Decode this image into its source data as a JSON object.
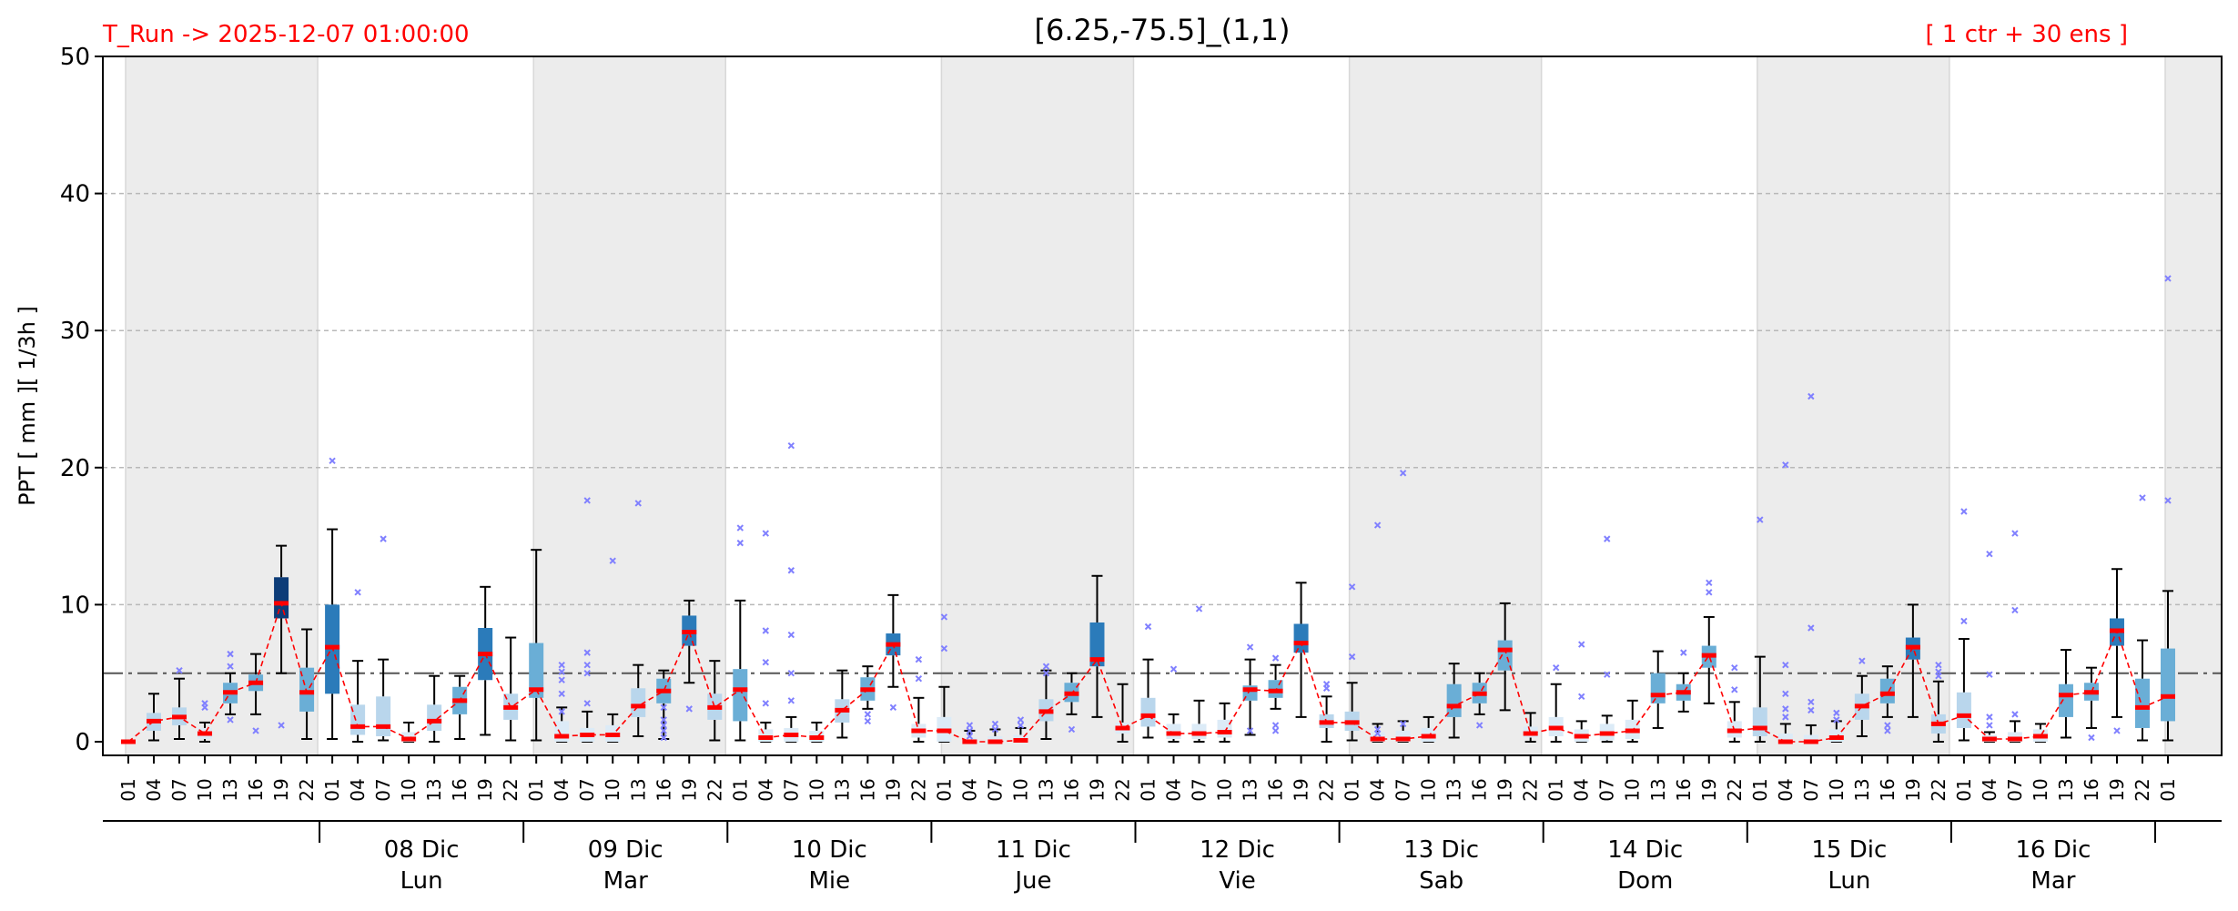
{
  "header": {
    "run_label": "T_Run -> 2025-12-07  01:00:00",
    "title": "[6.25,-75.5]_(1,1)",
    "ensemble_label": "[ 1 ctr + 30 ens ]",
    "run_color": "#ff0000",
    "ensemble_color": "#ff0000"
  },
  "chart_data": {
    "type": "box",
    "title": "[6.25,-75.5]_(1,1)",
    "ylabel": "PPT  [ mm ][ 1/3h ]",
    "ylim": [
      0,
      50
    ],
    "yticks": [
      0,
      10,
      20,
      30,
      40,
      50
    ],
    "grid": "horizontal dashed",
    "threshold": 5,
    "hours": [
      "01",
      "04",
      "07",
      "10",
      "13",
      "16",
      "19",
      "22",
      "01",
      "04",
      "07",
      "10",
      "13",
      "16",
      "19",
      "22",
      "01",
      "04",
      "07",
      "10",
      "13",
      "16",
      "19",
      "22",
      "01",
      "04",
      "07",
      "10",
      "13",
      "16",
      "19",
      "22",
      "01",
      "04",
      "07",
      "10",
      "13",
      "16",
      "19",
      "22",
      "01",
      "04",
      "07",
      "10",
      "13",
      "16",
      "19",
      "22",
      "01",
      "04",
      "07",
      "10",
      "13",
      "16",
      "19",
      "22",
      "01",
      "04",
      "07",
      "10",
      "13",
      "16",
      "19",
      "22",
      "01",
      "04",
      "07",
      "10",
      "13",
      "16",
      "19",
      "22",
      "01",
      "04",
      "07",
      "10",
      "13",
      "16",
      "19",
      "22",
      "01"
    ],
    "days": [
      {
        "date": "08 Dic",
        "weekday": "Lun"
      },
      {
        "date": "09 Dic",
        "weekday": "Mar"
      },
      {
        "date": "10 Dic",
        "weekday": "Mie"
      },
      {
        "date": "11 Dic",
        "weekday": "Jue"
      },
      {
        "date": "12 Dic",
        "weekday": "Vie"
      },
      {
        "date": "13 Dic",
        "weekday": "Sab"
      },
      {
        "date": "14 Dic",
        "weekday": "Dom"
      },
      {
        "date": "15 Dic",
        "weekday": "Lun"
      },
      {
        "date": "16 Dic",
        "weekday": "Mar"
      }
    ],
    "colors": {
      "night_band": "#ececec",
      "median": "#ff0000",
      "control_line": "#ff0000",
      "whisker": "#000000",
      "outlier": "#8080ff",
      "threshold_line": "#555555",
      "box_levels": [
        "#dcebf7",
        "#b9d6ec",
        "#6aaed6",
        "#2b7bba",
        "#0c3c78"
      ]
    },
    "series": [
      {
        "name": "control",
        "values": [
          0,
          1.5,
          1.8,
          0.6,
          3.6,
          4.3,
          10.1,
          3.6,
          6.9,
          1.1,
          1.1,
          0.2,
          1.5,
          3.0,
          6.4,
          2.5,
          3.8,
          0.4,
          0.5,
          0.5,
          2.6,
          3.7,
          8.0,
          2.5,
          3.8,
          0.3,
          0.5,
          0.3,
          2.3,
          3.8,
          7.1,
          0.8,
          0.8,
          0,
          0,
          0.1,
          2.2,
          3.5,
          6.0,
          1.0,
          1.9,
          0.6,
          0.6,
          0.7,
          3.8,
          3.7,
          7.2,
          1.4,
          1.4,
          0.2,
          0.2,
          0.4,
          2.6,
          3.5,
          6.7,
          0.6,
          1.0,
          0.4,
          0.6,
          0.8,
          3.4,
          3.6,
          6.3,
          0.8,
          1.0,
          0,
          0,
          0.3,
          2.6,
          3.5,
          6.9,
          1.3,
          1.9,
          0.2,
          0.2,
          0.4,
          3.4,
          3.6,
          8.1,
          2.5,
          3.3
        ]
      }
    ],
    "boxes": [
      {
        "q1": 0,
        "med": 0,
        "q3": 0,
        "wlo": 0,
        "whi": 0,
        "out": []
      },
      {
        "q1": 0.8,
        "med": 1.5,
        "q3": 2.1,
        "wlo": 0.1,
        "whi": 3.5,
        "out": []
      },
      {
        "q1": 1.2,
        "med": 1.8,
        "q3": 2.5,
        "wlo": 0.2,
        "whi": 4.6,
        "out": [
          5.2
        ]
      },
      {
        "q1": 0.2,
        "med": 0.6,
        "q3": 1.0,
        "wlo": 0,
        "whi": 1.4,
        "out": [
          2.5,
          2.8
        ]
      },
      {
        "q1": 2.8,
        "med": 3.6,
        "q3": 4.3,
        "wlo": 2.0,
        "whi": 5.0,
        "out": [
          5.5,
          6.4,
          1.6
        ]
      },
      {
        "q1": 3.7,
        "med": 4.3,
        "q3": 4.9,
        "wlo": 2.0,
        "whi": 6.4,
        "out": [
          0.8
        ]
      },
      {
        "q1": 9.0,
        "med": 10.1,
        "q3": 12.0,
        "wlo": 5.0,
        "whi": 14.3,
        "out": [
          1.2
        ]
      },
      {
        "q1": 2.2,
        "med": 3.6,
        "q3": 5.4,
        "wlo": 0.2,
        "whi": 8.2,
        "out": []
      },
      {
        "q1": 3.5,
        "med": 6.9,
        "q3": 10.0,
        "wlo": 0.2,
        "whi": 15.5,
        "out": [
          20.5
        ]
      },
      {
        "q1": 0.5,
        "med": 1.1,
        "q3": 2.7,
        "wlo": 0,
        "whi": 5.9,
        "out": [
          10.9
        ]
      },
      {
        "q1": 0.4,
        "med": 1.1,
        "q3": 3.3,
        "wlo": 0.1,
        "whi": 6.0,
        "out": [
          14.8
        ]
      },
      {
        "q1": 0,
        "med": 0.2,
        "q3": 0.7,
        "wlo": 0,
        "whi": 1.4,
        "out": []
      },
      {
        "q1": 0.8,
        "med": 1.5,
        "q3": 2.7,
        "wlo": 0,
        "whi": 4.8,
        "out": []
      },
      {
        "q1": 2.0,
        "med": 3.0,
        "q3": 4.0,
        "wlo": 0.2,
        "whi": 4.8,
        "out": []
      },
      {
        "q1": 4.5,
        "med": 6.4,
        "q3": 8.3,
        "wlo": 0.5,
        "whi": 11.3,
        "out": []
      },
      {
        "q1": 1.6,
        "med": 2.5,
        "q3": 3.5,
        "wlo": 0.1,
        "whi": 7.6,
        "out": []
      },
      {
        "q1": 3.2,
        "med": 3.8,
        "q3": 7.2,
        "wlo": 0.1,
        "whi": 14.0,
        "out": []
      },
      {
        "q1": 0,
        "med": 0.4,
        "q3": 1.5,
        "wlo": 0,
        "whi": 2.5,
        "out": [
          5.6,
          5.1,
          4.5,
          3.5,
          2.2
        ]
      },
      {
        "q1": 0,
        "med": 0.5,
        "q3": 1.0,
        "wlo": 0,
        "whi": 2.2,
        "out": [
          17.6,
          6.5,
          5.6,
          5.0,
          2.8
        ]
      },
      {
        "q1": 0,
        "med": 0.5,
        "q3": 1.2,
        "wlo": 0,
        "whi": 2.0,
        "out": [
          13.2
        ]
      },
      {
        "q1": 1.8,
        "med": 2.6,
        "q3": 3.9,
        "wlo": 0.4,
        "whi": 5.6,
        "out": [
          17.4
        ]
      },
      {
        "q1": 2.8,
        "med": 3.7,
        "q3": 4.6,
        "wlo": 0.2,
        "whi": 5.2,
        "out": [
          2.5,
          1.6,
          1.2,
          0.8,
          0.3
        ]
      },
      {
        "q1": 7.0,
        "med": 8.0,
        "q3": 9.2,
        "wlo": 4.3,
        "whi": 10.3,
        "out": [
          2.4
        ]
      },
      {
        "q1": 1.6,
        "med": 2.5,
        "q3": 3.5,
        "wlo": 0.1,
        "whi": 5.9,
        "out": []
      },
      {
        "q1": 1.5,
        "med": 3.8,
        "q3": 5.3,
        "wlo": 0.1,
        "whi": 10.3,
        "out": [
          15.6,
          14.5
        ]
      },
      {
        "q1": 0,
        "med": 0.3,
        "q3": 0.9,
        "wlo": 0,
        "whi": 1.4,
        "out": [
          15.2,
          8.1,
          5.8,
          2.8
        ]
      },
      {
        "q1": 0,
        "med": 0.5,
        "q3": 1.0,
        "wlo": 0,
        "whi": 1.8,
        "out": [
          21.6,
          12.5,
          7.8,
          5.0,
          3.0
        ]
      },
      {
        "q1": 0,
        "med": 0.3,
        "q3": 0.8,
        "wlo": 0,
        "whi": 1.4,
        "out": []
      },
      {
        "q1": 1.4,
        "med": 2.3,
        "q3": 3.1,
        "wlo": 0.3,
        "whi": 5.2,
        "out": []
      },
      {
        "q1": 3.0,
        "med": 3.8,
        "q3": 4.7,
        "wlo": 2.4,
        "whi": 5.5,
        "out": [
          2.0,
          1.5
        ]
      },
      {
        "q1": 6.3,
        "med": 7.1,
        "q3": 7.9,
        "wlo": 4.0,
        "whi": 10.7,
        "out": [
          2.5
        ]
      },
      {
        "q1": 0.3,
        "med": 0.8,
        "q3": 1.3,
        "wlo": 0,
        "whi": 3.2,
        "out": [
          6.0,
          4.6
        ]
      },
      {
        "q1": 0,
        "med": 0.8,
        "q3": 1.8,
        "wlo": 0,
        "whi": 4.0,
        "out": [
          9.1,
          6.8
        ]
      },
      {
        "q1": 0,
        "med": 0,
        "q3": 0.3,
        "wlo": 0,
        "whi": 0.8,
        "out": [
          1.2,
          0.8,
          0.4
        ]
      },
      {
        "q1": 0,
        "med": 0,
        "q3": 0.4,
        "wlo": 0,
        "whi": 0.9,
        "out": [
          1.3,
          0.9
        ]
      },
      {
        "q1": 0,
        "med": 0.1,
        "q3": 0.5,
        "wlo": 0,
        "whi": 1.0,
        "out": [
          1.6,
          1.2
        ]
      },
      {
        "q1": 1.5,
        "med": 2.2,
        "q3": 3.1,
        "wlo": 0.2,
        "whi": 5.2,
        "out": [
          5.5,
          5.0
        ]
      },
      {
        "q1": 2.9,
        "med": 3.5,
        "q3": 4.3,
        "wlo": 2.0,
        "whi": 5.0,
        "out": [
          0.9
        ]
      },
      {
        "q1": 5.5,
        "med": 6.0,
        "q3": 8.7,
        "wlo": 1.8,
        "whi": 12.1,
        "out": []
      },
      {
        "q1": 0.6,
        "med": 1.0,
        "q3": 1.4,
        "wlo": 0,
        "whi": 4.2,
        "out": []
      },
      {
        "q1": 1.1,
        "med": 1.9,
        "q3": 3.2,
        "wlo": 0.3,
        "whi": 6.0,
        "out": [
          8.4
        ]
      },
      {
        "q1": 0.2,
        "med": 0.6,
        "q3": 1.3,
        "wlo": 0,
        "whi": 2.0,
        "out": [
          5.3
        ]
      },
      {
        "q1": 0.2,
        "med": 0.6,
        "q3": 1.3,
        "wlo": 0,
        "whi": 3.0,
        "out": [
          9.7
        ]
      },
      {
        "q1": 0.3,
        "med": 0.7,
        "q3": 1.6,
        "wlo": 0,
        "whi": 2.8,
        "out": []
      },
      {
        "q1": 3.0,
        "med": 3.8,
        "q3": 4.1,
        "wlo": 0.5,
        "whi": 6.0,
        "out": [
          6.9,
          0.8
        ]
      },
      {
        "q1": 3.2,
        "med": 3.7,
        "q3": 4.5,
        "wlo": 2.4,
        "whi": 5.6,
        "out": [
          6.1,
          1.2,
          0.8
        ]
      },
      {
        "q1": 6.5,
        "med": 7.2,
        "q3": 8.6,
        "wlo": 1.8,
        "whi": 11.6,
        "out": []
      },
      {
        "q1": 1.0,
        "med": 1.4,
        "q3": 2.0,
        "wlo": 0,
        "whi": 3.3,
        "out": [
          4.2,
          3.9
        ]
      },
      {
        "q1": 0.8,
        "med": 1.4,
        "q3": 2.2,
        "wlo": 0.1,
        "whi": 4.3,
        "out": [
          11.3,
          6.2
        ]
      },
      {
        "q1": 0,
        "med": 0.2,
        "q3": 0.7,
        "wlo": 0,
        "whi": 1.3,
        "out": [
          15.8,
          0.9,
          0.6
        ]
      },
      {
        "q1": 0,
        "med": 0.2,
        "q3": 0.8,
        "wlo": 0,
        "whi": 1.5,
        "out": [
          19.6,
          1.3
        ]
      },
      {
        "q1": 0,
        "med": 0.4,
        "q3": 1.0,
        "wlo": 0,
        "whi": 1.8,
        "out": []
      },
      {
        "q1": 1.8,
        "med": 2.6,
        "q3": 4.2,
        "wlo": 0.3,
        "whi": 5.7,
        "out": []
      },
      {
        "q1": 2.8,
        "med": 3.5,
        "q3": 4.3,
        "wlo": 2.0,
        "whi": 5.0,
        "out": [
          1.2
        ]
      },
      {
        "q1": 5.2,
        "med": 6.7,
        "q3": 7.4,
        "wlo": 2.3,
        "whi": 10.1,
        "out": []
      },
      {
        "q1": 0.3,
        "med": 0.6,
        "q3": 1.1,
        "wlo": 0,
        "whi": 2.1,
        "out": []
      },
      {
        "q1": 0.4,
        "med": 1.0,
        "q3": 1.8,
        "wlo": 0,
        "whi": 4.2,
        "out": [
          5.4
        ]
      },
      {
        "q1": 0,
        "med": 0.4,
        "q3": 0.9,
        "wlo": 0,
        "whi": 1.5,
        "out": [
          7.1,
          3.3
        ]
      },
      {
        "q1": 0.1,
        "med": 0.6,
        "q3": 1.3,
        "wlo": 0,
        "whi": 1.9,
        "out": [
          14.8,
          4.9
        ]
      },
      {
        "q1": 0.2,
        "med": 0.8,
        "q3": 1.6,
        "wlo": 0,
        "whi": 3.0,
        "out": []
      },
      {
        "q1": 2.8,
        "med": 3.4,
        "q3": 5.0,
        "wlo": 1.0,
        "whi": 6.6,
        "out": []
      },
      {
        "q1": 3.0,
        "med": 3.6,
        "q3": 4.2,
        "wlo": 2.2,
        "whi": 5.0,
        "out": [
          6.5
        ]
      },
      {
        "q1": 5.4,
        "med": 6.3,
        "q3": 7.0,
        "wlo": 2.8,
        "whi": 9.1,
        "out": [
          11.6,
          10.9
        ]
      },
      {
        "q1": 0.3,
        "med": 0.8,
        "q3": 1.5,
        "wlo": 0,
        "whi": 2.9,
        "out": [
          5.4,
          3.8
        ]
      },
      {
        "q1": 0.4,
        "med": 1.0,
        "q3": 2.5,
        "wlo": 0,
        "whi": 6.2,
        "out": [
          16.2
        ]
      },
      {
        "q1": 0,
        "med": 0,
        "q3": 0.6,
        "wlo": 0,
        "whi": 1.3,
        "out": [
          20.2,
          5.6,
          3.5,
          2.4,
          1.8
        ]
      },
      {
        "q1": 0,
        "med": 0,
        "q3": 0.5,
        "wlo": 0,
        "whi": 1.2,
        "out": [
          25.2,
          8.3,
          2.9,
          2.3
        ]
      },
      {
        "q1": 0,
        "med": 0.3,
        "q3": 0.9,
        "wlo": 0,
        "whi": 1.5,
        "out": [
          2.1,
          1.6
        ]
      },
      {
        "q1": 1.6,
        "med": 2.6,
        "q3": 3.5,
        "wlo": 0.4,
        "whi": 4.8,
        "out": [
          5.9
        ]
      },
      {
        "q1": 2.8,
        "med": 3.5,
        "q3": 4.6,
        "wlo": 1.8,
        "whi": 5.5,
        "out": [
          1.2,
          0.8
        ]
      },
      {
        "q1": 6.0,
        "med": 6.9,
        "q3": 7.6,
        "wlo": 1.8,
        "whi": 10.0,
        "out": []
      },
      {
        "q1": 0.6,
        "med": 1.3,
        "q3": 2.0,
        "wlo": 0,
        "whi": 4.4,
        "out": [
          5.6,
          5.1,
          4.8
        ]
      },
      {
        "q1": 1.0,
        "med": 1.9,
        "q3": 3.6,
        "wlo": 0.1,
        "whi": 7.5,
        "out": [
          16.8,
          8.8
        ]
      },
      {
        "q1": 0,
        "med": 0.2,
        "q3": 0.5,
        "wlo": 0,
        "whi": 0.7,
        "out": [
          13.7,
          4.9,
          1.8,
          1.2
        ]
      },
      {
        "q1": 0,
        "med": 0.2,
        "q3": 0.7,
        "wlo": 0,
        "whi": 1.5,
        "out": [
          15.2,
          9.6,
          2.0
        ]
      },
      {
        "q1": 0,
        "med": 0.4,
        "q3": 0.9,
        "wlo": 0,
        "whi": 1.3,
        "out": []
      },
      {
        "q1": 1.8,
        "med": 3.4,
        "q3": 4.2,
        "wlo": 0.3,
        "whi": 6.7,
        "out": []
      },
      {
        "q1": 3.0,
        "med": 3.6,
        "q3": 4.3,
        "wlo": 1.0,
        "whi": 5.4,
        "out": [
          0.3
        ]
      },
      {
        "q1": 7.0,
        "med": 8.1,
        "q3": 9.0,
        "wlo": 1.8,
        "whi": 12.6,
        "out": [
          0.8
        ]
      },
      {
        "q1": 1.0,
        "med": 2.5,
        "q3": 4.6,
        "wlo": 0.1,
        "whi": 7.4,
        "out": [
          17.8
        ]
      },
      {
        "q1": 1.5,
        "med": 3.3,
        "q3": 6.8,
        "wlo": 0.1,
        "whi": 11.0,
        "out": [
          33.8,
          17.6
        ]
      }
    ]
  }
}
